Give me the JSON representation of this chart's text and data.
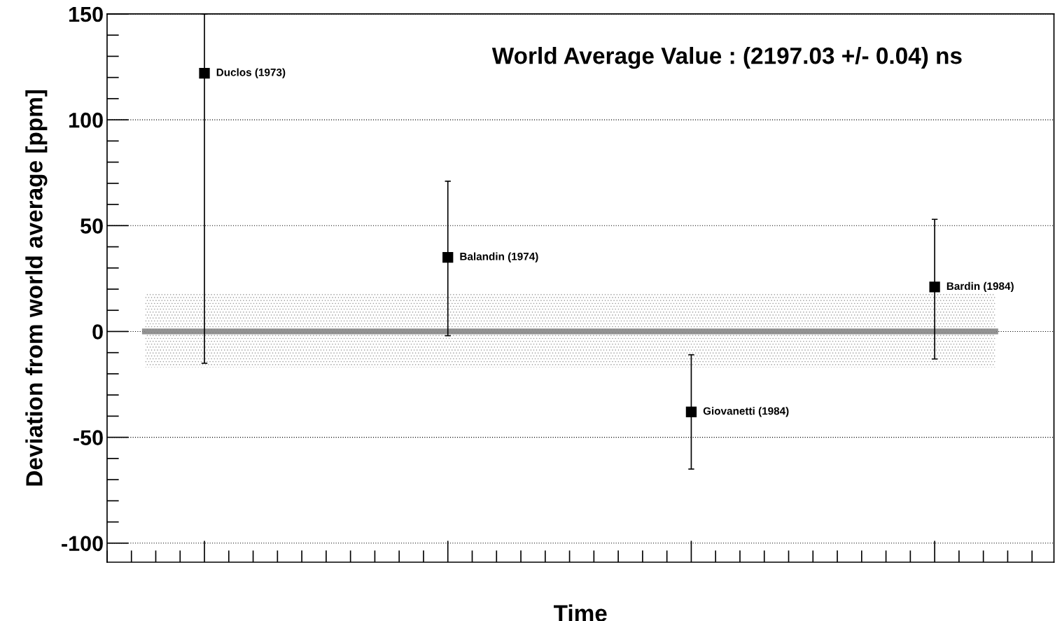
{
  "chart_data": {
    "type": "scatter",
    "title": "World Average Value : (2197.03 +/- 0.04) ns",
    "xlabel": "Time",
    "ylabel": "Deviation from world average [ppm]",
    "categories": [
      null,
      null,
      null,
      null
    ],
    "series": [
      {
        "name": "Duclos (1973)",
        "color": "#000000",
        "values": [
          122,
          null,
          null,
          null
        ],
        "errors": [
          [
            -15,
            150
          ],
          null,
          null,
          null
        ]
      },
      {
        "name": "Balandin (1974)",
        "color": "#000000",
        "values": [
          null,
          35,
          null,
          null
        ],
        "errors": [
          null,
          [
            -2,
            71
          ],
          null,
          null
        ]
      },
      {
        "name": "Giovanetti (1984)",
        "color": "#000000",
        "values": [
          null,
          null,
          -38,
          null
        ],
        "errors": [
          null,
          null,
          [
            -65,
            -11
          ],
          null
        ]
      },
      {
        "name": "Bardin (1984)",
        "color": "#000000",
        "values": [
          null,
          null,
          null,
          21
        ],
        "errors": [
          null,
          null,
          null,
          [
            -13,
            53
          ]
        ]
      }
    ],
    "marker": "square",
    "ylim": [
      -109,
      150
    ],
    "yticks": [
      -100,
      -50,
      0,
      50,
      100,
      150
    ],
    "grid": "y",
    "tick_labels": "y",
    "bands": [
      {
        "axis": "y",
        "from": -17,
        "to": 18,
        "color": "#909090"
      }
    ],
    "ref_lines": [
      {
        "axis": "y",
        "value": 0,
        "color": "#808080"
      }
    ]
  }
}
